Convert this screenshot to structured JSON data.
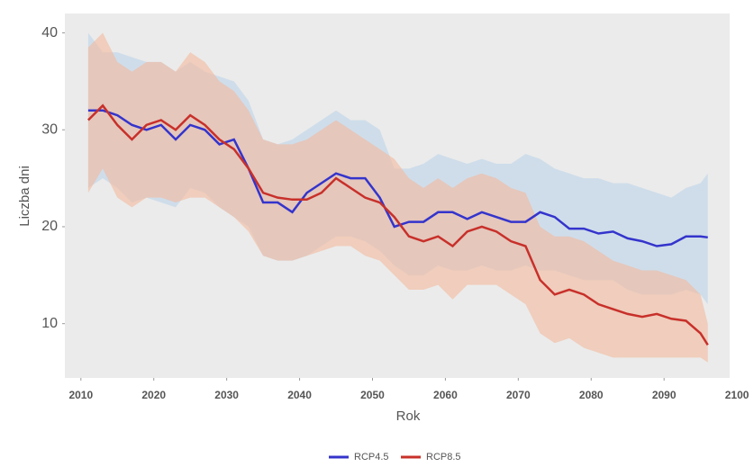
{
  "chart_data": {
    "type": "line_band",
    "x_label": "Rok",
    "y_label": "Liczba dni",
    "x": [
      2011,
      2013,
      2015,
      2017,
      2019,
      2021,
      2023,
      2025,
      2027,
      2029,
      2031,
      2033,
      2035,
      2037,
      2039,
      2041,
      2043,
      2045,
      2047,
      2049,
      2051,
      2053,
      2055,
      2057,
      2059,
      2061,
      2063,
      2065,
      2067,
      2069,
      2071,
      2073,
      2075,
      2077,
      2079,
      2081,
      2083,
      2085,
      2087,
      2089,
      2091,
      2093,
      2095,
      2096
    ],
    "series": [
      {
        "name": "RCP4.5",
        "color": "#3434cc",
        "band_color": "#bcd3ea",
        "values": [
          32,
          32,
          31.5,
          30.5,
          30,
          30.5,
          29,
          30.5,
          30,
          28.5,
          29,
          26,
          22.5,
          22.5,
          21.5,
          23.5,
          24.5,
          25.5,
          25,
          25,
          23,
          20,
          20.5,
          20.5,
          21.5,
          21.5,
          20.8,
          21.5,
          21,
          20.5,
          20.5,
          21.5,
          21,
          19.8,
          19.8,
          19.3,
          19.5,
          18.8,
          18.5,
          18,
          18.2,
          19,
          19,
          18.9
        ],
        "lower": [
          24,
          25,
          24,
          22.5,
          23,
          22.5,
          22,
          24,
          23.5,
          22,
          21,
          20,
          17,
          16.5,
          16.5,
          17,
          18,
          19,
          19,
          18.5,
          17.5,
          16,
          15,
          15,
          16,
          15.5,
          15.5,
          16,
          15.5,
          15.5,
          16,
          15.5,
          15.5,
          15,
          14.5,
          14.5,
          14.5,
          13.5,
          13,
          13,
          13,
          13.5,
          13,
          12
        ],
        "upper": [
          40,
          38,
          38,
          37.5,
          37,
          37,
          36,
          37,
          36,
          35.5,
          35,
          33,
          29,
          28.5,
          29,
          30,
          31,
          32,
          31,
          31,
          30,
          26,
          26,
          26.5,
          27.5,
          27,
          26.5,
          27,
          26.5,
          26.5,
          27.5,
          27,
          26,
          25.5,
          25,
          25,
          24.5,
          24.5,
          24,
          23.5,
          23,
          24,
          24.5,
          25.5
        ]
      },
      {
        "name": "RCP8.5",
        "color": "#c8302a",
        "band_color": "#f3b99c",
        "values": [
          31,
          32.5,
          30.5,
          29,
          30.5,
          31,
          30,
          31.5,
          30.5,
          29,
          28,
          26,
          23.5,
          23,
          22.8,
          22.8,
          23.5,
          25,
          24,
          23,
          22.5,
          21,
          19,
          18.5,
          19,
          18,
          19.5,
          20,
          19.5,
          18.5,
          18,
          14.5,
          13,
          13.5,
          13,
          12,
          11.5,
          11,
          10.7,
          11,
          10.5,
          10.3,
          9,
          7.8
        ],
        "lower": [
          23.5,
          26,
          23,
          22,
          23,
          23,
          22.5,
          23,
          23,
          22,
          21,
          19.5,
          17,
          16.5,
          16.5,
          17,
          17.5,
          18,
          18,
          17,
          16.5,
          15,
          13.5,
          13.5,
          14,
          12.5,
          14,
          14,
          14,
          13,
          12,
          9,
          8,
          8.5,
          7.5,
          7,
          6.5,
          6.5,
          6.5,
          6.5,
          6.5,
          6.5,
          6.5,
          6
        ],
        "upper": [
          38.5,
          40,
          37,
          36,
          37,
          37,
          36,
          38,
          37,
          35,
          34,
          32,
          29,
          28.5,
          28.5,
          29,
          30,
          31,
          30,
          29,
          28,
          27,
          25,
          24,
          25,
          24,
          25,
          25.5,
          25,
          24,
          23.5,
          20,
          19,
          19,
          18.5,
          17.5,
          16.5,
          16,
          15.5,
          15.5,
          15,
          14.5,
          13,
          10
        ]
      }
    ],
    "xlim": [
      2007.8,
      2099
    ],
    "ylim": [
      4.4,
      42
    ],
    "xticks": [
      2010,
      2020,
      2030,
      2040,
      2050,
      2060,
      2070,
      2080,
      2090,
      2100
    ],
    "yticks": [
      10,
      20,
      30,
      40
    ],
    "grid": false,
    "legend": "bottom"
  }
}
